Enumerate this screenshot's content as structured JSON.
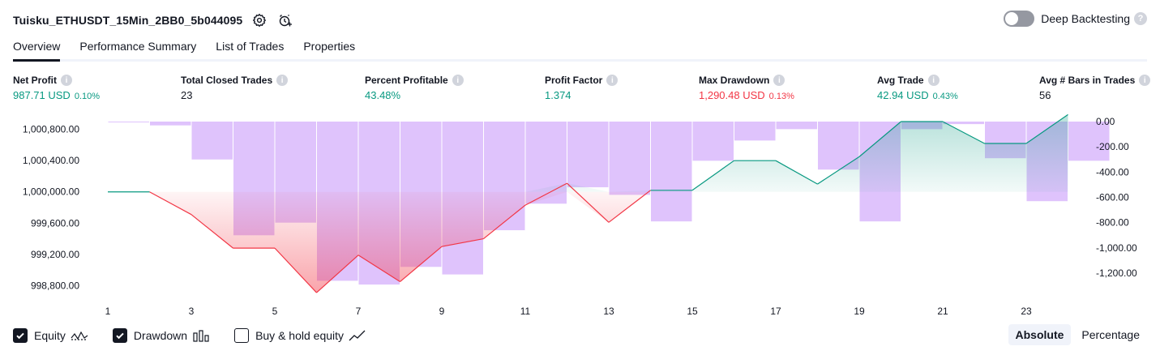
{
  "header": {
    "title": "Tuisku_ETHUSDT_15Min_2BB0_5b044095",
    "deep_backtesting_label": "Deep Backtesting",
    "help_mark": "?"
  },
  "tabs": [
    {
      "label": "Overview",
      "active": true
    },
    {
      "label": "Performance Summary",
      "active": false
    },
    {
      "label": "List of Trades",
      "active": false
    },
    {
      "label": "Properties",
      "active": false
    }
  ],
  "metrics": {
    "info_mark": "i",
    "net_profit": {
      "label": "Net Profit",
      "value": "987.71 USD",
      "sub": "0.10%"
    },
    "total_closed_trades": {
      "label": "Total Closed Trades",
      "value": "23"
    },
    "percent_profitable": {
      "label": "Percent Profitable",
      "value": "43.48%"
    },
    "profit_factor": {
      "label": "Profit Factor",
      "value": "1.374"
    },
    "max_drawdown": {
      "label": "Max Drawdown",
      "value": "1,290.48 USD",
      "sub": "0.13%"
    },
    "avg_trade": {
      "label": "Avg Trade",
      "value": "42.94 USD",
      "sub": "0.43%"
    },
    "avg_bars": {
      "label": "Avg # Bars in Trades",
      "value": "56"
    }
  },
  "colors": {
    "profit": "#089981",
    "loss": "#f23645",
    "drawdown_bar": "#d9b8fb",
    "text": "#131722"
  },
  "chart_data": {
    "type": "line",
    "x": [
      1,
      2,
      3,
      4,
      5,
      6,
      7,
      8,
      9,
      10,
      11,
      12,
      13,
      14,
      15,
      16,
      17,
      18,
      19,
      20,
      21,
      22,
      23,
      24
    ],
    "xticks": [
      "1",
      "3",
      "5",
      "7",
      "9",
      "11",
      "13",
      "15",
      "17",
      "19",
      "21",
      "23"
    ],
    "yticks_left": [
      "1,000,800.00",
      "1,000,400.00",
      "1,000,000.00",
      "999,600.00",
      "999,200.00",
      "998,800.00"
    ],
    "yticks_right": [
      "0.00",
      "-200.00",
      "-400.00",
      "-600.00",
      "-800.00",
      "-1,000.00",
      "-1,200.00"
    ],
    "ylim_left": [
      998700,
      1000900
    ],
    "ylim_right": [
      -1360,
      0
    ],
    "series": [
      {
        "name": "Equity",
        "axis": "left",
        "values": [
          1000000,
          1000000,
          999710,
          999280,
          999280,
          998710,
          999190,
          998850,
          999300,
          999400,
          999830,
          1000110,
          999610,
          1000020,
          1000020,
          1000400,
          1000400,
          1000100,
          1000450,
          1000900,
          1000900,
          1000620,
          1000620,
          1000990
        ]
      },
      {
        "name": "Drawdown",
        "axis": "right",
        "values": [
          -5,
          -30,
          -300,
          -900,
          -800,
          -1260,
          -1290,
          -1150,
          -1210,
          -860,
          -650,
          -520,
          -580,
          -790,
          -310,
          -150,
          -60,
          -380,
          -790,
          -60,
          -20,
          -290,
          -630,
          -310
        ]
      }
    ],
    "legend": [
      "Equity",
      "Drawdown",
      "Buy & hold equity"
    ]
  },
  "footer": {
    "equity_label": "Equity",
    "drawdown_label": "Drawdown",
    "buyhold_label": "Buy & hold equity",
    "absolute_label": "Absolute",
    "percentage_label": "Percentage"
  }
}
